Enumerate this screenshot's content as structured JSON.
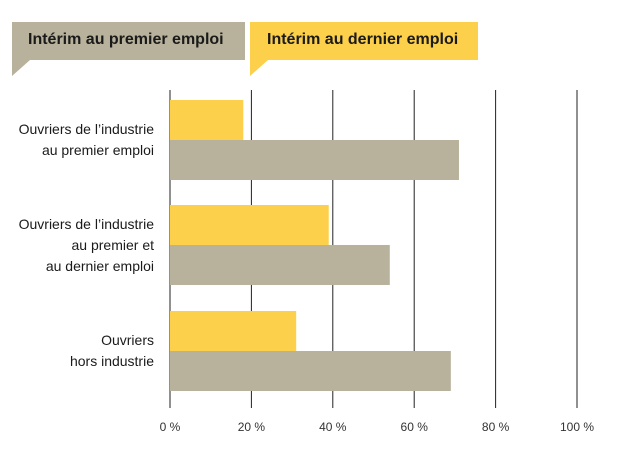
{
  "colors": {
    "premier": "#b8b19c",
    "dernier": "#fcd04a",
    "gridline": "#222222"
  },
  "chart_data": {
    "type": "bar",
    "orientation": "horizontal",
    "categories": [
      [
        "Ouvriers de l’industrie",
        "au premier emploi"
      ],
      [
        "Ouvriers de l’industrie",
        "au premier et",
        "au dernier emploi"
      ],
      [
        "Ouvriers",
        "hors industrie"
      ]
    ],
    "series": [
      {
        "name": "Intérim au dernier emploi",
        "values": [
          18,
          39,
          31
        ]
      },
      {
        "name": "Intérim au premier emploi",
        "values": [
          71,
          54,
          69
        ]
      }
    ],
    "xlim": [
      0,
      100
    ],
    "xticks": [
      0,
      20,
      40,
      60,
      80,
      100
    ],
    "xtick_labels": [
      "0 %",
      "20 %",
      "40 %",
      "60 %",
      "80 %",
      "100 %"
    ],
    "grid": true,
    "legend_position": "top"
  }
}
